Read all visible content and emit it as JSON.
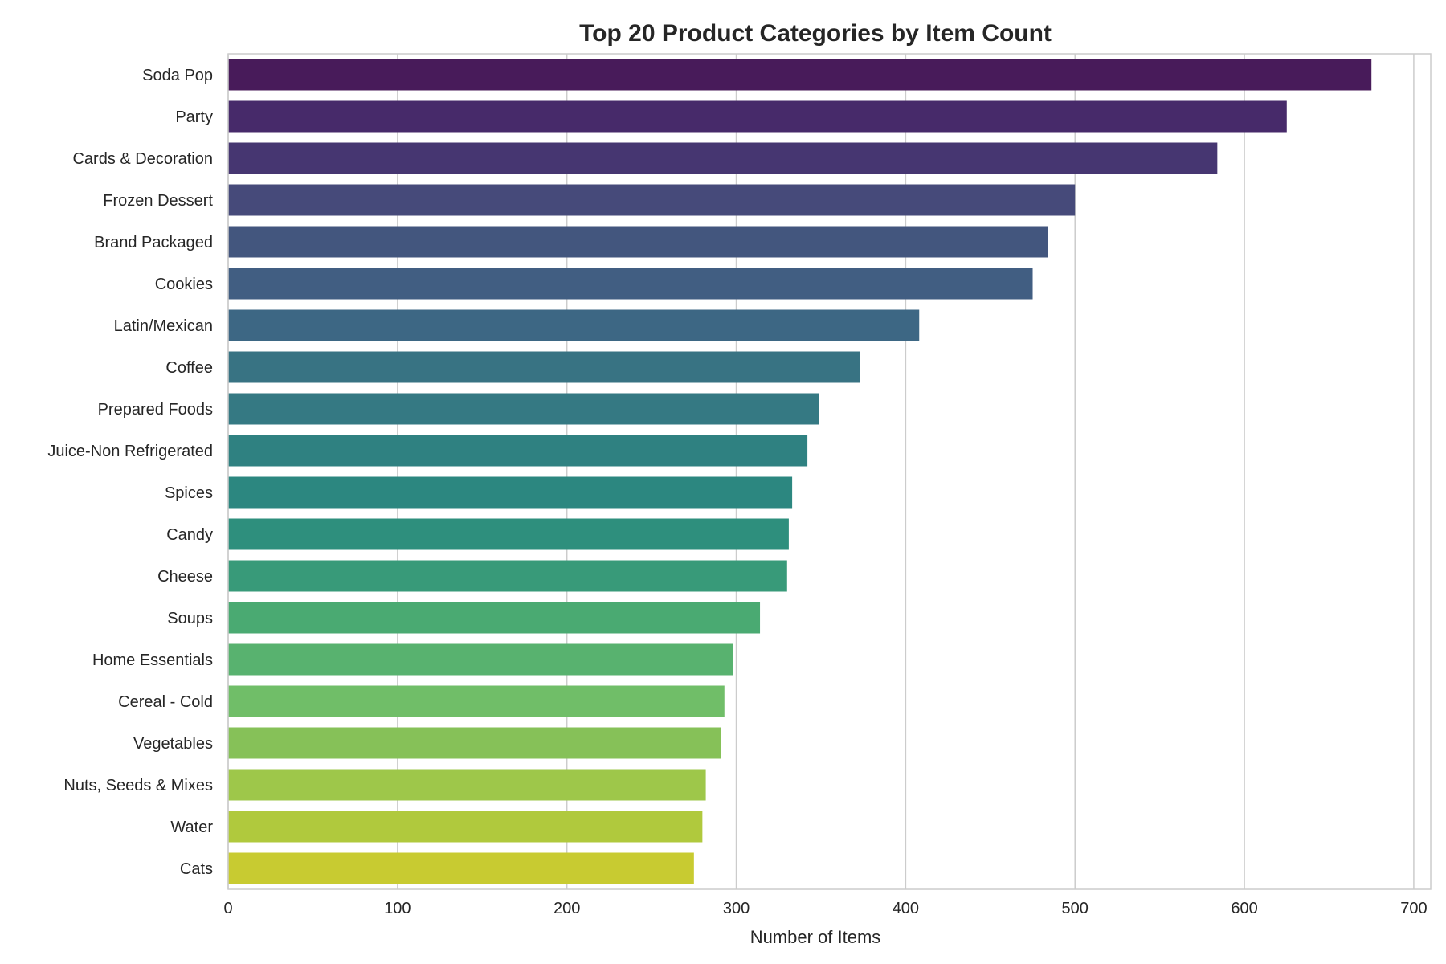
{
  "chart_data": {
    "type": "bar",
    "orientation": "horizontal",
    "title": "Top 20 Product Categories by Item Count",
    "xlabel": "Number of Items",
    "ylabel": "",
    "xlim": [
      0,
      710
    ],
    "xticks": [
      0,
      100,
      200,
      300,
      400,
      500,
      600,
      700
    ],
    "grid": true,
    "categories": [
      "Soda Pop",
      "Party",
      "Cards & Decoration",
      "Frozen Dessert",
      "Brand Packaged",
      "Cookies",
      "Latin/Mexican",
      "Coffee",
      "Prepared Foods",
      "Juice-Non Refrigerated",
      "Spices",
      "Candy",
      "Cheese",
      "Soups",
      "Home Essentials",
      "Cereal - Cold",
      "Vegetables",
      "Nuts, Seeds & Mixes",
      "Water",
      "Cats"
    ],
    "values": [
      675,
      625,
      584,
      500,
      484,
      475,
      408,
      373,
      349,
      342,
      333,
      331,
      330,
      314,
      298,
      293,
      291,
      282,
      280,
      275
    ],
    "colors": [
      "#481b5a",
      "#472a6a",
      "#463671",
      "#464a7a",
      "#43567e",
      "#415e82",
      "#3d6784",
      "#387383",
      "#357983",
      "#2f8181",
      "#2c8780",
      "#2e8f7d",
      "#389a79",
      "#4aaa72",
      "#58b26f",
      "#70be68",
      "#86c158",
      "#9ec74a",
      "#b0c93d",
      "#c8cb31"
    ]
  }
}
